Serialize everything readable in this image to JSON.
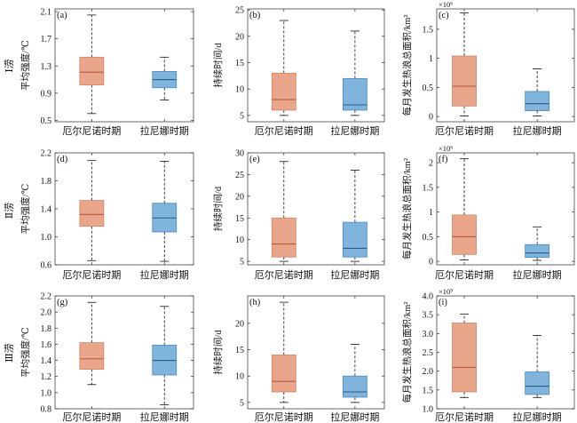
{
  "row_labels": [
    "Ⅰ涝",
    "Ⅱ涝",
    "Ⅲ涝"
  ],
  "colors": {
    "el_nino_fill": "#E9A68B",
    "el_nino_edge": "#CC8468",
    "el_nino_median": "#B4583A",
    "la_nina_fill": "#7FB5DC",
    "la_nina_edge": "#4D89B8",
    "la_nina_median": "#2B5C88"
  },
  "chart_data": [
    {
      "type": "box",
      "panel_label": "(a)",
      "ylabel": "平均强度/℃",
      "grid": false,
      "categories": [
        "厄尔尼诺时期",
        "拉尼娜时期"
      ],
      "yticks": [
        "0.5",
        "0.9",
        "1.3",
        "1.7",
        "2.1"
      ],
      "ylim": [
        0.48,
        2.14
      ],
      "boxes": [
        {
          "min": 0.6,
          "q1": 1.02,
          "median": 1.21,
          "q3": 1.43,
          "max": 2.05
        },
        {
          "min": 0.8,
          "q1": 0.98,
          "median": 1.1,
          "q3": 1.22,
          "max": 1.43
        }
      ]
    },
    {
      "type": "box",
      "panel_label": "(b)",
      "ylabel": "持续时间/d",
      "grid": false,
      "categories": [
        "厄尔尼诺时期",
        "拉尼娜时期"
      ],
      "yticks": [
        "5",
        "10",
        "15",
        "20",
        "25"
      ],
      "ylim": [
        3.8,
        25.2
      ],
      "boxes": [
        {
          "min": 5,
          "q1": 6,
          "median": 8,
          "q3": 13,
          "max": 23
        },
        {
          "min": 5,
          "q1": 6,
          "median": 7,
          "q3": 12,
          "max": 21
        }
      ]
    },
    {
      "type": "box",
      "panel_label": "(c)",
      "ylabel": "每月发生热浪总面积/km²",
      "multiplier": "×10⁶",
      "grid": false,
      "categories": [
        "厄尔尼诺时期",
        "拉尼娜时期"
      ],
      "yticks": [
        "0",
        "0.5",
        "1",
        "1.5"
      ],
      "ylim": [
        -0.09,
        1.85
      ],
      "boxes": [
        {
          "min": 0.01,
          "q1": 0.18,
          "median": 0.52,
          "q3": 1.04,
          "max": 1.78
        },
        {
          "min": 0.01,
          "q1": 0.1,
          "median": 0.22,
          "q3": 0.43,
          "max": 0.82
        }
      ]
    },
    {
      "type": "box",
      "panel_label": "(d)",
      "ylabel": "平均强度/℃",
      "grid": false,
      "categories": [
        "厄尔尼诺时期",
        "拉尼娜时期"
      ],
      "yticks": [
        "0.6",
        "1.0",
        "1.4",
        "1.8",
        "2.2"
      ],
      "ylim": [
        0.6,
        2.2
      ],
      "boxes": [
        {
          "min": 0.66,
          "q1": 1.15,
          "median": 1.32,
          "q3": 1.52,
          "max": 2.09
        },
        {
          "min": 0.65,
          "q1": 1.07,
          "median": 1.27,
          "q3": 1.48,
          "max": 2.08
        }
      ]
    },
    {
      "type": "box",
      "panel_label": "(e)",
      "ylabel": "持续时间/d",
      "grid": false,
      "categories": [
        "厄尔尼诺时期",
        "拉尼娜时期"
      ],
      "yticks": [
        "5",
        "10",
        "15",
        "20",
        "25",
        "30"
      ],
      "ylim": [
        4.2,
        30
      ],
      "boxes": [
        {
          "min": 5,
          "q1": 6,
          "median": 9,
          "q3": 15,
          "max": 28
        },
        {
          "min": 5,
          "q1": 6,
          "median": 8,
          "q3": 14,
          "max": 26
        }
      ]
    },
    {
      "type": "box",
      "panel_label": "(f)",
      "ylabel": "每月发生热浪总面积/km²",
      "multiplier": "×10⁶",
      "grid": false,
      "categories": [
        "厄尔尼诺时期",
        "拉尼娜时期"
      ],
      "yticks": [
        "0",
        "0.5",
        "1",
        "1.5",
        "2"
      ],
      "ylim": [
        -0.07,
        2.2
      ],
      "boxes": [
        {
          "min": 0.03,
          "q1": 0.14,
          "median": 0.5,
          "q3": 0.94,
          "max": 2.08
        },
        {
          "min": 0.02,
          "q1": 0.08,
          "median": 0.17,
          "q3": 0.34,
          "max": 0.7
        }
      ]
    },
    {
      "type": "box",
      "panel_label": "(g)",
      "ylabel": "平均强度/℃",
      "grid": false,
      "categories": [
        "厄尔尼诺时期",
        "拉尼娜时期"
      ],
      "yticks": [
        "0.8",
        "1.0",
        "1.2",
        "1.4",
        "1.6",
        "1.8",
        "2.0",
        "2.2"
      ],
      "ylim": [
        0.8,
        2.2
      ],
      "boxes": [
        {
          "min": 1.1,
          "q1": 1.29,
          "median": 1.42,
          "q3": 1.62,
          "max": 2.12
        },
        {
          "min": 0.85,
          "q1": 1.22,
          "median": 1.4,
          "q3": 1.59,
          "max": 2.07
        }
      ]
    },
    {
      "type": "box",
      "panel_label": "(h)",
      "ylabel": "持续时间/d",
      "grid": false,
      "categories": [
        "厄尔尼诺时期",
        "拉尼娜时期"
      ],
      "yticks": [
        "5",
        "10",
        "15",
        "20"
      ],
      "ylim": [
        3.8,
        25.2
      ],
      "boxes": [
        {
          "min": 5,
          "q1": 7,
          "median": 9,
          "q3": 14,
          "max": 24
        },
        {
          "min": 5,
          "q1": 6,
          "median": 7,
          "q3": 10,
          "max": 16
        }
      ]
    },
    {
      "type": "box",
      "panel_label": "(i)",
      "ylabel": "每月发生热浪总面积/km²",
      "multiplier": "×10⁵",
      "grid": false,
      "categories": [
        "厄尔尼诺时期",
        "拉尼娜时期"
      ],
      "yticks": [
        "1.0",
        "1.5",
        "2.0",
        "2.5",
        "3.0",
        "3.5",
        "4.0"
      ],
      "ylim": [
        1.0,
        4.0
      ],
      "boxes": [
        {
          "min": 1.3,
          "q1": 1.45,
          "median": 2.1,
          "q3": 3.28,
          "max": 3.52
        },
        {
          "min": 1.3,
          "q1": 1.38,
          "median": 1.6,
          "q3": 1.98,
          "max": 2.95
        }
      ]
    }
  ]
}
